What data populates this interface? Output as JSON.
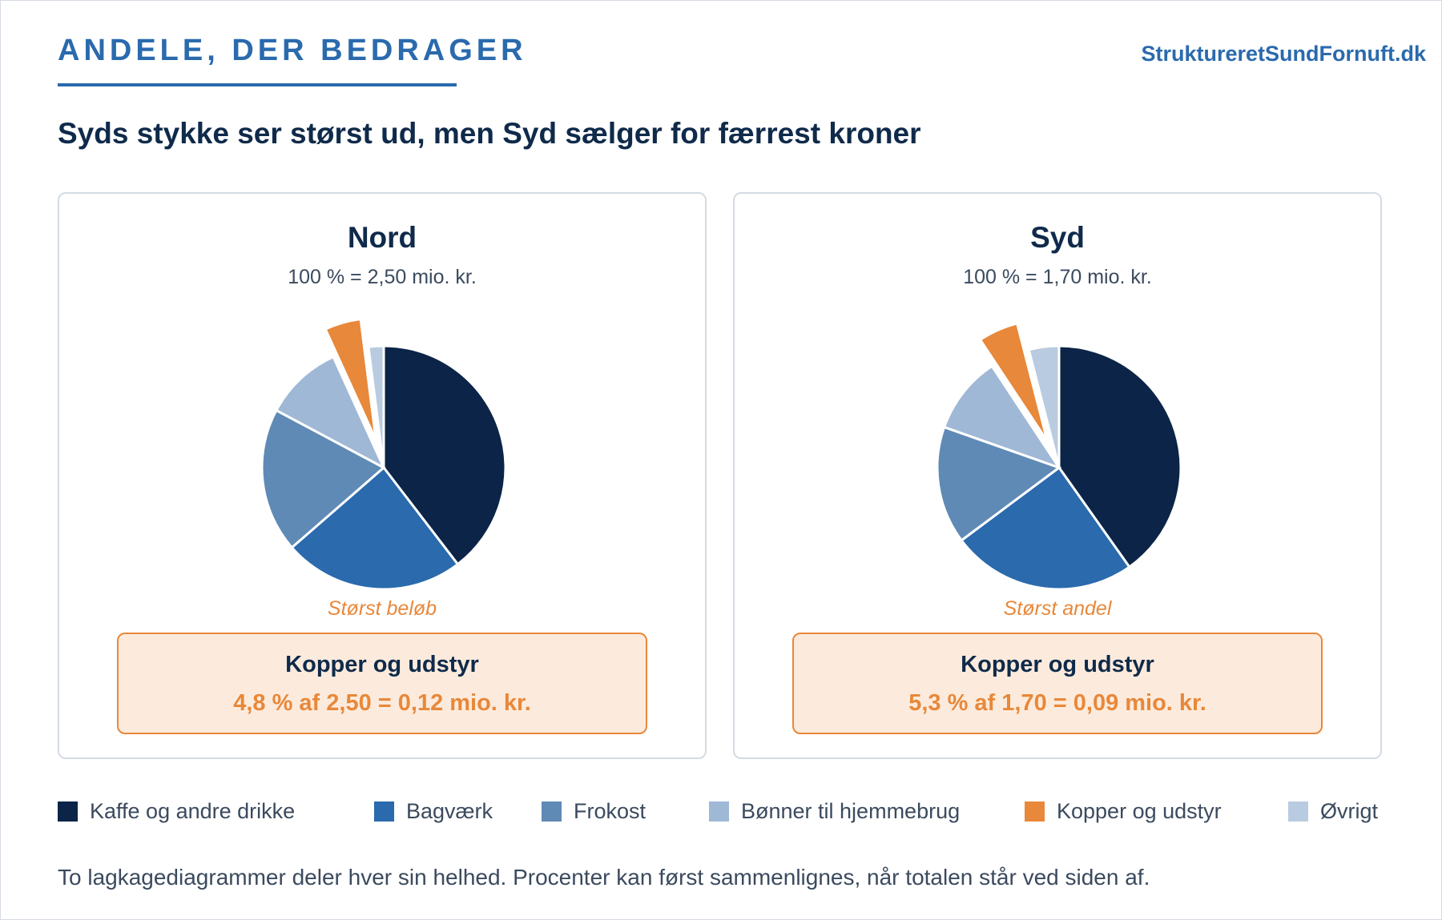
{
  "header": {
    "kicker": "ANDELE, DER BEDRAGER",
    "brand": "StruktureretSundFornuft.dk",
    "headline": "Syds stykke ser størst ud, men Syd sælger for færrest kroner"
  },
  "colors": {
    "accent": "#2a6aad",
    "highlight": "#e8883a",
    "highlight_bg": "#fcebdd",
    "dark_text": "#0f2a4a",
    "muted_text": "#3b4a5e"
  },
  "chart_data": [
    {
      "type": "pie",
      "title": "Nord",
      "subtitle": "100 % = 2,50 mio. kr.",
      "total_mio_kr": 2.5,
      "labels": [
        "Kaffe og andre drikke",
        "Bagværk",
        "Frokost",
        "Bønner til hjemmebrug",
        "Kopper og udstyr",
        "Øvrigt"
      ],
      "values": [
        39.6,
        24.0,
        19.2,
        10.4,
        4.8,
        2.0
      ],
      "exploded": "Kopper og udstyr",
      "note": "Størst beløb",
      "callout_title": "Kopper og udstyr",
      "callout_value": "4,8 % af 2,50 = 0,12 mio. kr."
    },
    {
      "type": "pie",
      "title": "Syd",
      "subtitle": "100 % = 1,70 mio. kr.",
      "total_mio_kr": 1.7,
      "labels": [
        "Kaffe og andre drikke",
        "Bagværk",
        "Frokost",
        "Bønner til hjemmebrug",
        "Kopper og udstyr",
        "Øvrigt"
      ],
      "values": [
        40.2,
        24.6,
        15.6,
        10.3,
        5.3,
        4.0
      ],
      "exploded": "Kopper og udstyr",
      "note": "Størst andel",
      "callout_title": "Kopper og udstyr",
      "callout_value": "5,3 % af 1,70 = 0,09 mio. kr."
    }
  ],
  "legend": [
    {
      "label": "Kaffe og andre drikke",
      "color": "#0b2447"
    },
    {
      "label": "Bagværk",
      "color": "#2a6aad"
    },
    {
      "label": "Frokost",
      "color": "#5f8ab5"
    },
    {
      "label": "Bønner til hjemmebrug",
      "color": "#9fb8d6"
    },
    {
      "label": "Kopper og udstyr",
      "color": "#e8883a"
    },
    {
      "label": "Øvrigt",
      "color": "#b9cbe0"
    }
  ],
  "footnote": "To lagkagediagrammer deler hver sin helhed. Procenter kan først sammenlignes, når totalen står ved siden af."
}
